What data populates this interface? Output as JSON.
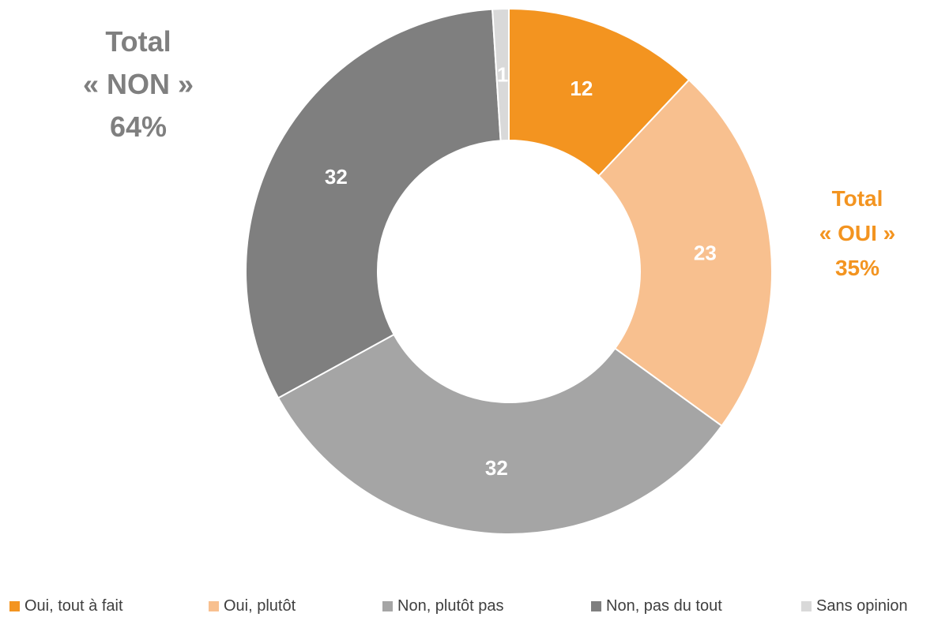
{
  "chart_data": {
    "type": "pie",
    "variant": "donut",
    "categories": [
      "Oui, tout à fait",
      "Oui, plutôt",
      "Non, plutôt pas",
      "Non, pas du tout",
      "Sans opinion"
    ],
    "values": [
      12,
      23,
      32,
      32,
      1
    ],
    "value_labels": [
      "12",
      "23",
      "32",
      "32",
      "1"
    ],
    "colors": [
      "#F39420",
      "#F8C08F",
      "#A5A5A5",
      "#7F7F7F",
      "#D9D9D9"
    ],
    "legend_position": "bottom"
  },
  "annotations": {
    "total_non": {
      "line1": "Total",
      "line2": "« NON »",
      "line3": "64%",
      "color": "#7F7F7F"
    },
    "total_oui": {
      "line1": "Total",
      "line2": "« OUI »",
      "line3": "35%",
      "color": "#F39420"
    }
  }
}
